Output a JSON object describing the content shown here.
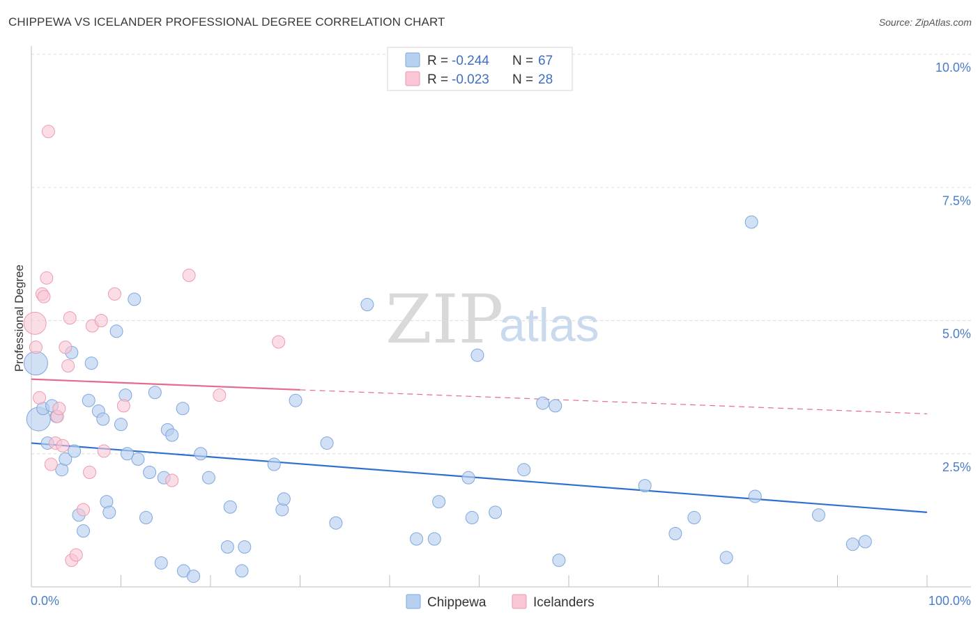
{
  "header": {
    "title": "CHIPPEWA VS ICELANDER PROFESSIONAL DEGREE CORRELATION CHART",
    "source": "Source: ZipAtlas.com"
  },
  "watermark": {
    "zip": "ZIP",
    "atlas": "atlas"
  },
  "legend": {
    "rows": [
      {
        "r_label": "R =",
        "r_value": "-0.244",
        "n_label": "N =",
        "n_value": "67",
        "color": "#a9c6ee"
      },
      {
        "r_label": "R =",
        "r_value": "-0.023",
        "n_label": "N =",
        "n_value": "28",
        "color": "#f5b8c9"
      }
    ]
  },
  "bottom_legend": {
    "items": [
      "Chippewa",
      "Icelanders"
    ]
  },
  "colors": {
    "chippewa_fill": "#b8d0f0",
    "chippewa_stroke": "#7ea7de",
    "chippewa_line": "#2e6fcf",
    "icelander_fill": "#f8c6d4",
    "icelander_stroke": "#ee9ab2",
    "icelander_line": "#e46a90"
  },
  "chart_data": {
    "type": "scatter",
    "title": "CHIPPEWA VS ICELANDER PROFESSIONAL DEGREE CORRELATION CHART",
    "xlabel": "",
    "ylabel": "Professional Degree",
    "xlim": [
      0,
      100
    ],
    "ylim": [
      0,
      10
    ],
    "x_tick_labels": [
      "0.0%",
      "100.0%"
    ],
    "y_ticks": [
      2.5,
      5.0,
      7.5,
      10.0
    ],
    "y_tick_labels": [
      "2.5%",
      "5.0%",
      "7.5%",
      "10.0%"
    ],
    "grid": "horizontal dashed",
    "legend_position": "top-center",
    "series": [
      {
        "name": "Chippewa",
        "r": -0.244,
        "n": 67,
        "points": [
          [
            0.5,
            4.2
          ],
          [
            0.8,
            3.15
          ],
          [
            1.3,
            3.35
          ],
          [
            1.8,
            2.7
          ],
          [
            2.3,
            3.4
          ],
          [
            2.8,
            3.2
          ],
          [
            3.4,
            2.2
          ],
          [
            3.8,
            2.4
          ],
          [
            4.5,
            4.4
          ],
          [
            4.8,
            2.55
          ],
          [
            5.3,
            1.35
          ],
          [
            5.8,
            1.05
          ],
          [
            6.4,
            3.5
          ],
          [
            6.7,
            4.2
          ],
          [
            7.5,
            3.3
          ],
          [
            8.0,
            3.15
          ],
          [
            8.4,
            1.6
          ],
          [
            8.7,
            1.4
          ],
          [
            9.5,
            4.8
          ],
          [
            10.0,
            3.05
          ],
          [
            10.5,
            3.6
          ],
          [
            10.7,
            2.5
          ],
          [
            11.5,
            5.4
          ],
          [
            11.9,
            2.4
          ],
          [
            12.8,
            1.3
          ],
          [
            13.2,
            2.15
          ],
          [
            13.8,
            3.65
          ],
          [
            14.5,
            0.45
          ],
          [
            14.8,
            2.05
          ],
          [
            15.2,
            2.95
          ],
          [
            15.7,
            2.85
          ],
          [
            16.9,
            3.35
          ],
          [
            17.0,
            0.3
          ],
          [
            18.1,
            0.2
          ],
          [
            18.9,
            2.5
          ],
          [
            19.8,
            2.05
          ],
          [
            21.9,
            0.75
          ],
          [
            22.2,
            1.5
          ],
          [
            23.5,
            0.3
          ],
          [
            23.8,
            0.75
          ],
          [
            27.1,
            2.3
          ],
          [
            28.0,
            1.45
          ],
          [
            28.2,
            1.65
          ],
          [
            29.5,
            3.5
          ],
          [
            33.0,
            2.7
          ],
          [
            34.0,
            1.2
          ],
          [
            37.5,
            5.3
          ],
          [
            43.0,
            0.9
          ],
          [
            45.0,
            0.9
          ],
          [
            45.5,
            1.6
          ],
          [
            48.8,
            2.05
          ],
          [
            49.2,
            1.3
          ],
          [
            49.8,
            4.35
          ],
          [
            51.8,
            1.4
          ],
          [
            55.0,
            2.2
          ],
          [
            57.1,
            3.45
          ],
          [
            58.5,
            3.4
          ],
          [
            58.9,
            0.5
          ],
          [
            68.5,
            1.9
          ],
          [
            71.9,
            1.0
          ],
          [
            74.0,
            1.3
          ],
          [
            77.6,
            0.55
          ],
          [
            80.4,
            6.85
          ],
          [
            80.8,
            1.7
          ],
          [
            87.9,
            1.35
          ],
          [
            91.7,
            0.8
          ],
          [
            93.1,
            0.85
          ]
        ]
      },
      {
        "name": "Icelanders",
        "r": -0.023,
        "n": 28,
        "points": [
          [
            0.4,
            4.95
          ],
          [
            0.5,
            4.5
          ],
          [
            0.9,
            3.55
          ],
          [
            1.2,
            5.5
          ],
          [
            1.4,
            5.45
          ],
          [
            1.7,
            5.8
          ],
          [
            1.9,
            8.55
          ],
          [
            2.2,
            2.3
          ],
          [
            2.7,
            2.7
          ],
          [
            2.9,
            3.2
          ],
          [
            3.1,
            3.35
          ],
          [
            3.5,
            2.65
          ],
          [
            3.8,
            4.5
          ],
          [
            4.1,
            4.15
          ],
          [
            4.3,
            5.05
          ],
          [
            4.5,
            0.5
          ],
          [
            5.0,
            0.6
          ],
          [
            5.8,
            1.45
          ],
          [
            6.5,
            2.15
          ],
          [
            6.8,
            4.9
          ],
          [
            7.8,
            5.0
          ],
          [
            8.1,
            2.55
          ],
          [
            9.3,
            5.5
          ],
          [
            10.3,
            3.4
          ],
          [
            15.7,
            2.0
          ],
          [
            17.6,
            5.85
          ],
          [
            21.0,
            3.6
          ],
          [
            27.6,
            4.6
          ]
        ]
      }
    ],
    "trend_lines": [
      {
        "series": "Chippewa",
        "x": [
          0,
          100
        ],
        "y": [
          2.7,
          1.4
        ],
        "style": "solid"
      },
      {
        "series": "Icelanders",
        "x": [
          0,
          30
        ],
        "y": [
          3.9,
          3.7
        ],
        "style": "solid"
      },
      {
        "series": "Icelanders",
        "x": [
          30,
          100
        ],
        "y": [
          3.7,
          3.25
        ],
        "style": "dashed"
      }
    ]
  }
}
